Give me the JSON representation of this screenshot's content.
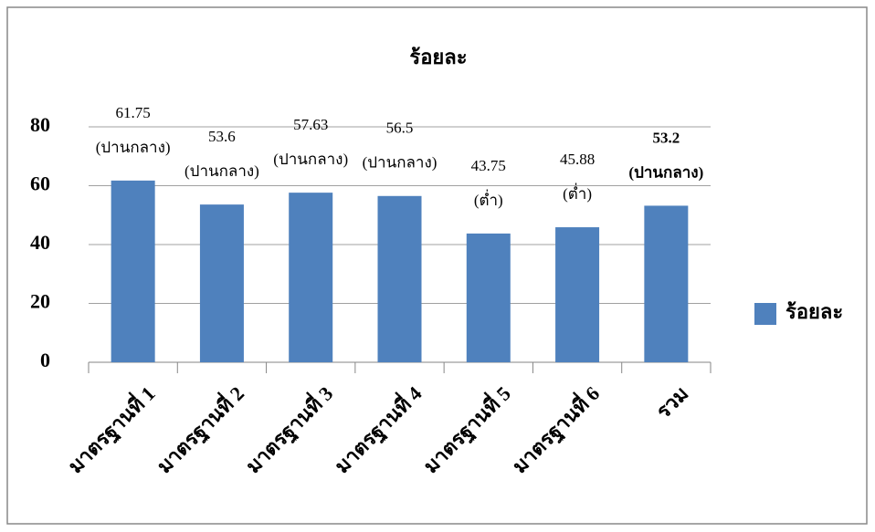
{
  "chart_data": {
    "type": "bar",
    "title": "ร้อยละ",
    "categories": [
      "มาตรฐานที่ 1",
      "มาตรฐานที่ 2",
      "มาตรฐานที่ 3",
      "มาตรฐานที่ 4",
      "มาตรฐานที่ 5",
      "มาตรฐานที่ 6",
      "รวม"
    ],
    "series": [
      {
        "name": "ร้อยละ",
        "color": "#4f81bd",
        "values": [
          61.75,
          53.6,
          57.63,
          56.5,
          43.75,
          45.88,
          53.2
        ]
      }
    ],
    "level_labels": [
      "(ปานกลาง)",
      "(ปานกลาง)",
      "(ปานกลาง)",
      "(ปานกลาง)",
      "(ต่ำ)",
      "(ต่ำ)",
      "(ปานกลาง)"
    ],
    "ylim": [
      0,
      80
    ],
    "yticks": [
      0,
      20,
      40,
      60,
      80
    ],
    "grid": true,
    "legend": "right"
  }
}
